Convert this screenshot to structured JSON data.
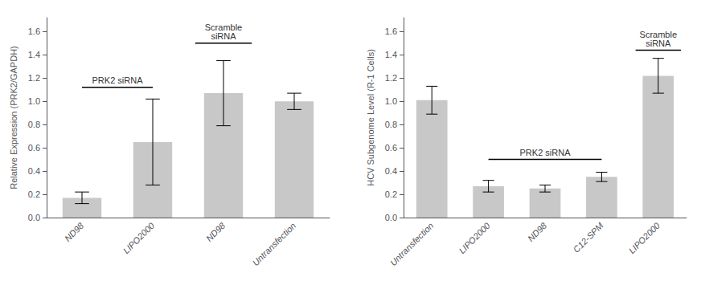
{
  "chart_data": [
    {
      "type": "bar",
      "categories": [
        "ND98",
        "LIPO2000",
        "ND98",
        "Untransfection"
      ],
      "values": [
        0.17,
        0.65,
        1.07,
        1.0
      ],
      "errors": [
        0.05,
        0.37,
        0.28,
        0.07
      ],
      "ylabel": "Relative Expression (PRK2/GAPDH)",
      "ylim": [
        0,
        1.72
      ],
      "yticks": [
        {
          "value": 0.0,
          "label": "0.0"
        },
        0.2,
        0.4,
        0.6,
        0.8,
        {
          "value": 1.0,
          "label": "1.0"
        },
        1.2,
        1.4,
        1.6
      ],
      "color": "#c8c8c8",
      "grid": false,
      "annotations": [
        {
          "text": "PRK2 siRNA",
          "x1": 0,
          "x2": 1,
          "y": 1.12
        },
        {
          "text": "Scramble\nsiRNA",
          "x1": 2,
          "x2": 2,
          "y": 1.5
        }
      ]
    },
    {
      "type": "bar",
      "categories": [
        "Untransfection",
        "LIPO2000",
        "ND98",
        "C12-SPM",
        "LIPO2000"
      ],
      "values": [
        1.01,
        0.27,
        0.25,
        0.35,
        1.22
      ],
      "errors": [
        0.12,
        0.05,
        0.03,
        0.04,
        0.15
      ],
      "ylabel": "HCV Subgenome Level (R-1 Cells)",
      "ylim": [
        0,
        1.72
      ],
      "yticks": [
        {
          "value": 0.0,
          "label": "0.0"
        },
        0.2,
        0.4,
        0.6,
        0.8,
        {
          "value": 1.0,
          "label": "1.0"
        },
        1.2,
        1.4,
        1.6
      ],
      "color": "#c8c8c8",
      "grid": false,
      "annotations": [
        {
          "text": "PRK2 siRNA",
          "x1": 1,
          "x2": 3,
          "y": 0.5
        },
        {
          "text": "Scramble\nsiRNA",
          "x1": 4,
          "x2": 4,
          "y": 1.44
        }
      ]
    }
  ]
}
